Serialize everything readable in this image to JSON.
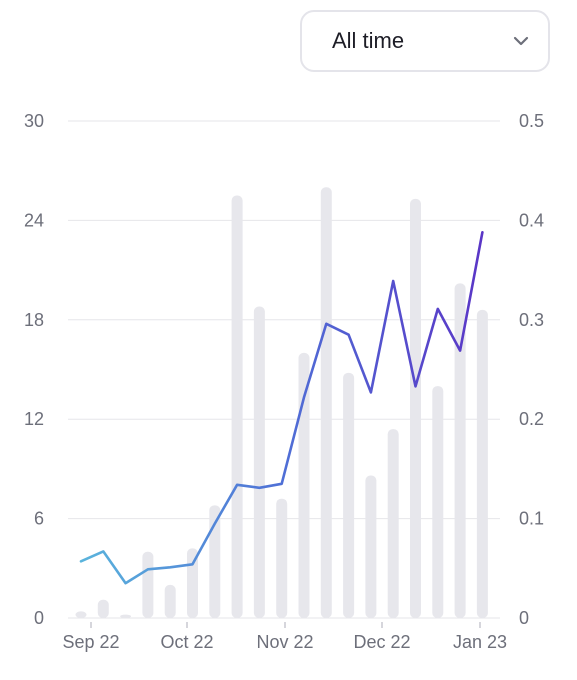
{
  "filter": {
    "selected": "All time",
    "icon": "chevron-down-icon"
  },
  "colors": {
    "bar": "#e7e7ec",
    "grid": "#e6e6ea",
    "tick_text": "#6d6f7a",
    "line_start": "#5ab4dc",
    "line_mid": "#4f6fd6",
    "line_end": "#5a35c6"
  },
  "chart_data": {
    "type": "bar+line",
    "x_ticks": [
      "Sep 22",
      "Oct 22",
      "Nov 22",
      "Dec 22",
      "Jan 23"
    ],
    "y_left": {
      "ticks": [
        "0",
        "6",
        "12",
        "18",
        "24",
        "30"
      ],
      "range": [
        0,
        30
      ]
    },
    "y_right": {
      "ticks": [
        "0",
        "0.1",
        "0.2",
        "0.3",
        "0.4",
        "0.5"
      ],
      "range": [
        0,
        0.5
      ]
    },
    "grid": true,
    "bars": [
      0.4,
      1.1,
      0.2,
      4.0,
      2.0,
      4.2,
      6.8,
      25.5,
      18.8,
      7.2,
      16.0,
      26.0,
      14.8,
      8.6,
      11.4,
      25.3,
      14.0,
      20.2,
      18.6
    ],
    "line": [
      0.057,
      0.067,
      0.035,
      0.049,
      0.051,
      0.054,
      0.095,
      0.134,
      0.131,
      0.135,
      0.222,
      0.296,
      0.285,
      0.227,
      0.339,
      0.233,
      0.311,
      0.269,
      0.388
    ]
  }
}
